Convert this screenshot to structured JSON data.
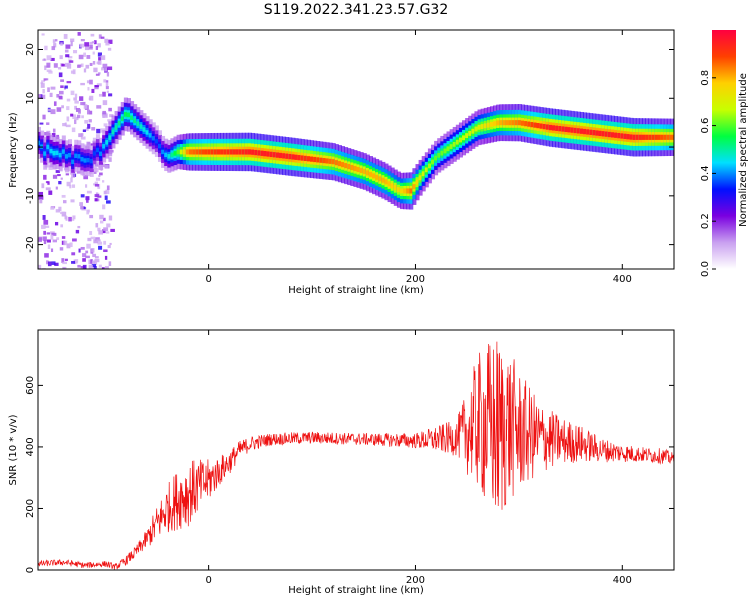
{
  "figure": {
    "title": "S119.2022.341.23.57.G32"
  },
  "chart_data": [
    {
      "type": "heatmap",
      "title": "",
      "xlabel": "Height of straight line (km)",
      "ylabel": "Frequency (Hz)",
      "xlim": [
        -165,
        450
      ],
      "ylim": [
        -25,
        24
      ],
      "xticks": [
        0,
        200,
        400
      ],
      "yticks": [
        -20,
        -10,
        0,
        10,
        20
      ],
      "colorbar": {
        "label": "Normalized spectral amplitude",
        "range": [
          0.0,
          1.0
        ],
        "ticks": [
          0.0,
          0.2,
          0.4,
          0.6,
          0.8
        ],
        "tick_labels": [
          "0.0",
          "0.2",
          "0.4",
          "0.6",
          "0.8"
        ],
        "colormap": [
          "#ffffff",
          "#c9a0f0",
          "#7a00e0",
          "#0010ff",
          "#00e0ff",
          "#00ff40",
          "#c8ff00",
          "#ffd000",
          "#ff4000",
          "#ff0040"
        ]
      },
      "ridge": {
        "x": [
          -165,
          -150,
          -135,
          -120,
          -110,
          -100,
          -90,
          -80,
          -70,
          -60,
          -50,
          -45,
          -40,
          -30,
          -20,
          0,
          40,
          80,
          120,
          150,
          170,
          185,
          195,
          205,
          220,
          240,
          260,
          280,
          300,
          330,
          370,
          410,
          450
        ],
        "frequency": [
          0,
          -1,
          -2,
          -3,
          -2,
          1,
          4,
          7,
          5,
          3,
          1,
          -1,
          -2,
          -1,
          -1,
          -1,
          -1,
          -2,
          -3,
          -5,
          -7,
          -9,
          -9,
          -6,
          -2,
          1,
          4,
          5,
          5,
          4,
          3,
          2,
          2
        ],
        "amplitude": [
          0.4,
          0.45,
          0.4,
          0.4,
          0.35,
          0.45,
          0.5,
          0.55,
          0.5,
          0.45,
          0.35,
          0.4,
          0.45,
          0.6,
          0.85,
          0.9,
          0.95,
          0.95,
          0.85,
          0.8,
          0.8,
          0.75,
          0.85,
          0.7,
          0.6,
          0.65,
          0.7,
          0.8,
          0.85,
          0.95,
          0.95,
          0.95,
          0.85
        ]
      },
      "noise_band_x": [
        -165,
        -95
      ]
    },
    {
      "type": "line",
      "title": "",
      "xlabel": "Height of straight line (km)",
      "ylabel": "SNR (10 * v/v)",
      "xlim": [
        -165,
        450
      ],
      "ylim": [
        0,
        780
      ],
      "xticks": [
        0,
        200,
        400
      ],
      "yticks": [
        0,
        200,
        400,
        600
      ],
      "color": "#ee1111",
      "series": [
        {
          "x": [
            -165,
            -140,
            -120,
            -100,
            -90,
            -80,
            -70,
            -60,
            -50,
            -40,
            -30,
            -20,
            -10,
            0,
            10,
            20,
            30,
            40,
            60,
            100,
            150,
            200,
            240,
            250,
            260,
            270,
            280,
            290,
            300,
            310,
            320,
            340,
            360,
            380,
            400,
            420,
            440,
            450
          ],
          "values": [
            20,
            25,
            15,
            20,
            10,
            30,
            60,
            100,
            150,
            200,
            230,
            250,
            270,
            290,
            320,
            350,
            390,
            410,
            425,
            430,
            425,
            420,
            430,
            450,
            480,
            470,
            450,
            470,
            450,
            440,
            430,
            420,
            410,
            390,
            380,
            375,
            370,
            360
          ],
          "envelope": [
            10,
            10,
            10,
            10,
            10,
            15,
            20,
            30,
            60,
            80,
            100,
            110,
            90,
            70,
            50,
            40,
            30,
            25,
            20,
            20,
            20,
            25,
            60,
            140,
            220,
            280,
            320,
            260,
            200,
            160,
            120,
            80,
            60,
            40,
            30,
            25,
            25,
            20
          ]
        }
      ]
    }
  ]
}
